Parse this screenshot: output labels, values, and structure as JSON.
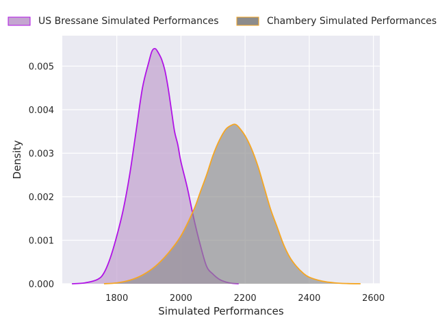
{
  "chart_data": {
    "type": "area",
    "title": "",
    "xlabel": "Simulated Performances",
    "ylabel": "Density",
    "xlim": [
      1630,
      2620
    ],
    "ylim": [
      0,
      0.0057
    ],
    "xticks": [
      "1800",
      "2000",
      "2200",
      "2400",
      "2600"
    ],
    "yticks": [
      "0.000",
      "0.001",
      "0.002",
      "0.003",
      "0.004",
      "0.005"
    ],
    "grid": true,
    "legend_placement": "top",
    "series": [
      {
        "name": "US Bressane Simulated Performances",
        "line_color": "#b012e6",
        "fill_color": "#c4a6d0",
        "x": [
          1660,
          1700,
          1740,
          1760,
          1780,
          1800,
          1820,
          1840,
          1860,
          1880,
          1900,
          1910,
          1920,
          1930,
          1940,
          1950,
          1960,
          1970,
          1980,
          1990,
          2000,
          2020,
          2040,
          2060,
          2080,
          2100,
          2120,
          2140,
          2160,
          2180
        ],
        "y": [
          0.0,
          2e-05,
          0.0001,
          0.00025,
          0.0006,
          0.0011,
          0.0017,
          0.0025,
          0.0035,
          0.0045,
          0.0051,
          0.00535,
          0.0054,
          0.0053,
          0.00515,
          0.0049,
          0.0045,
          0.004,
          0.0035,
          0.0032,
          0.0028,
          0.0022,
          0.0015,
          0.0009,
          0.0004,
          0.00022,
          0.0001,
          4e-05,
          1e-05,
          0.0
        ]
      },
      {
        "name": "Chambery Simulated Performances",
        "line_color": "#f5a623",
        "fill_color": "#8c8c8c",
        "x": [
          1760,
          1800,
          1840,
          1880,
          1920,
          1960,
          2000,
          2040,
          2060,
          2080,
          2100,
          2120,
          2140,
          2160,
          2170,
          2180,
          2200,
          2220,
          2240,
          2260,
          2280,
          2300,
          2320,
          2340,
          2360,
          2380,
          2400,
          2440,
          2480,
          2520,
          2560
        ],
        "y": [
          0.0,
          2e-05,
          8e-05,
          0.0002,
          0.0004,
          0.0007,
          0.0011,
          0.0017,
          0.0021,
          0.0025,
          0.00295,
          0.0033,
          0.00355,
          0.00365,
          0.00366,
          0.0036,
          0.0034,
          0.0031,
          0.0027,
          0.0022,
          0.0017,
          0.0013,
          0.0009,
          0.0006,
          0.0004,
          0.00025,
          0.00015,
          6e-05,
          2e-05,
          5e-06,
          0.0
        ]
      }
    ]
  }
}
